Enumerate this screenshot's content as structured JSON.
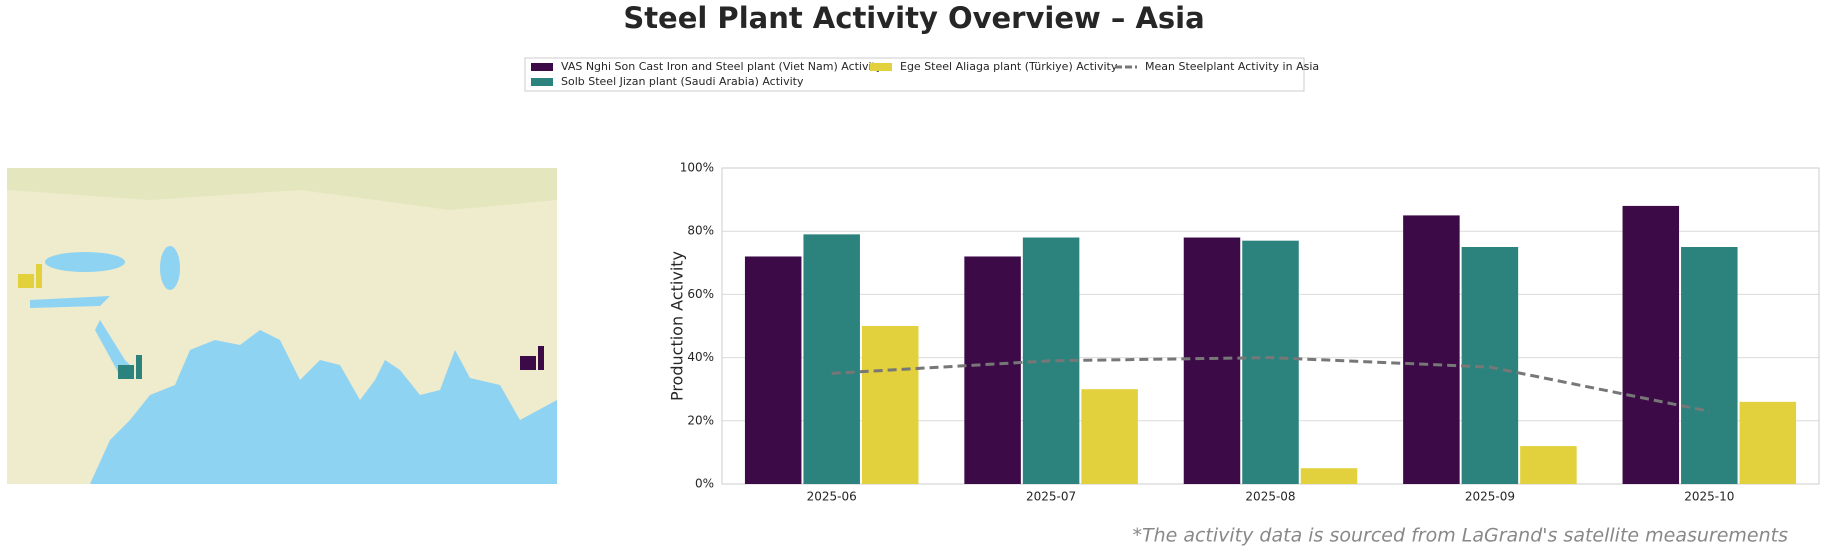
{
  "chart_data": {
    "type": "bar",
    "title": "Steel Plant Activity Overview – Asia",
    "y_label": "Production Activity",
    "note": "*The activity data is sourced from LaGrand's satellite measurements",
    "categories": [
      "2025-06",
      "2025-07",
      "2025-08",
      "2025-09",
      "2025-10"
    ],
    "series": [
      {
        "name": "VAS Nghi Son Cast Iron and Steel plant (Viet Nam) Activity",
        "color": "#3b0a47",
        "values": [
          72,
          72,
          78,
          85,
          88
        ]
      },
      {
        "name": "Solb Steel Jizan plant (Saudi Arabia) Activity",
        "color": "#2c827c",
        "values": [
          79,
          78,
          77,
          75,
          75
        ]
      },
      {
        "name": "Ege Steel Aliaga plant (Türkiye) Activity",
        "color": "#e2d13c",
        "values": [
          50,
          30,
          5,
          12,
          26
        ]
      },
      {
        "name": "Mean Steelplant Activity in Asia",
        "type": "line",
        "dashed": true,
        "color": "#777777",
        "values": [
          35,
          39,
          40,
          37,
          23
        ]
      }
    ],
    "ylim": [
      0,
      100
    ],
    "yticks": [
      {
        "value": 0,
        "label": "0%"
      },
      {
        "value": 20,
        "label": "20%"
      },
      {
        "value": 40,
        "label": "40%"
      },
      {
        "value": 60,
        "label": "60%"
      },
      {
        "value": 80,
        "label": "80%"
      },
      {
        "value": 100,
        "label": "100%"
      }
    ],
    "grid": true
  }
}
